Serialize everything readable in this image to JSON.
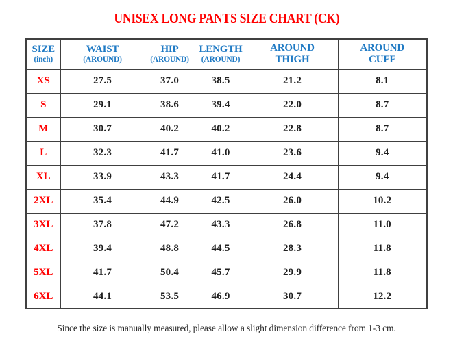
{
  "title": "UNISEX LONG PANTS SIZE CHART (CK)",
  "colors": {
    "title_red": "#ff0000",
    "header_blue": "#1f7ac4",
    "size_label_red": "#ff0000",
    "cell_text": "#1f1f1f",
    "border": "#404040"
  },
  "table": {
    "headers": [
      {
        "line1": "SIZE",
        "line2": "(inch)"
      },
      {
        "line1": "WAIST",
        "line2": "(AROUND)"
      },
      {
        "line1": "HIP",
        "line2": "(AROUND)"
      },
      {
        "line1": "LENGTH",
        "line2": "(AROUND)"
      },
      {
        "line1": "AROUND",
        "line2": "THIGH"
      },
      {
        "line1": "AROUND",
        "line2": "CUFF"
      }
    ],
    "rows": [
      {
        "size": "XS",
        "values": [
          "27.5",
          "37.0",
          "38.5",
          "21.2",
          "8.1"
        ]
      },
      {
        "size": "S",
        "values": [
          "29.1",
          "38.6",
          "39.4",
          "22.0",
          "8.7"
        ]
      },
      {
        "size": "M",
        "values": [
          "30.7",
          "40.2",
          "40.2",
          "22.8",
          "8.7"
        ]
      },
      {
        "size": "L",
        "values": [
          "32.3",
          "41.7",
          "41.0",
          "23.6",
          "9.4"
        ]
      },
      {
        "size": "XL",
        "values": [
          "33.9",
          "43.3",
          "41.7",
          "24.4",
          "9.4"
        ]
      },
      {
        "size": "2XL",
        "values": [
          "35.4",
          "44.9",
          "42.5",
          "26.0",
          "10.2"
        ]
      },
      {
        "size": "3XL",
        "values": [
          "37.8",
          "47.2",
          "43.3",
          "26.8",
          "11.0"
        ]
      },
      {
        "size": "4XL",
        "values": [
          "39.4",
          "48.8",
          "44.5",
          "28.3",
          "11.8"
        ]
      },
      {
        "size": "5XL",
        "values": [
          "41.7",
          "50.4",
          "45.7",
          "29.9",
          "11.8"
        ]
      },
      {
        "size": "6XL",
        "values": [
          "44.1",
          "53.5",
          "46.9",
          "30.7",
          "12.2"
        ]
      }
    ]
  },
  "note": "Since the size is manually measured, please allow a slight dimension difference from 1-3 cm."
}
